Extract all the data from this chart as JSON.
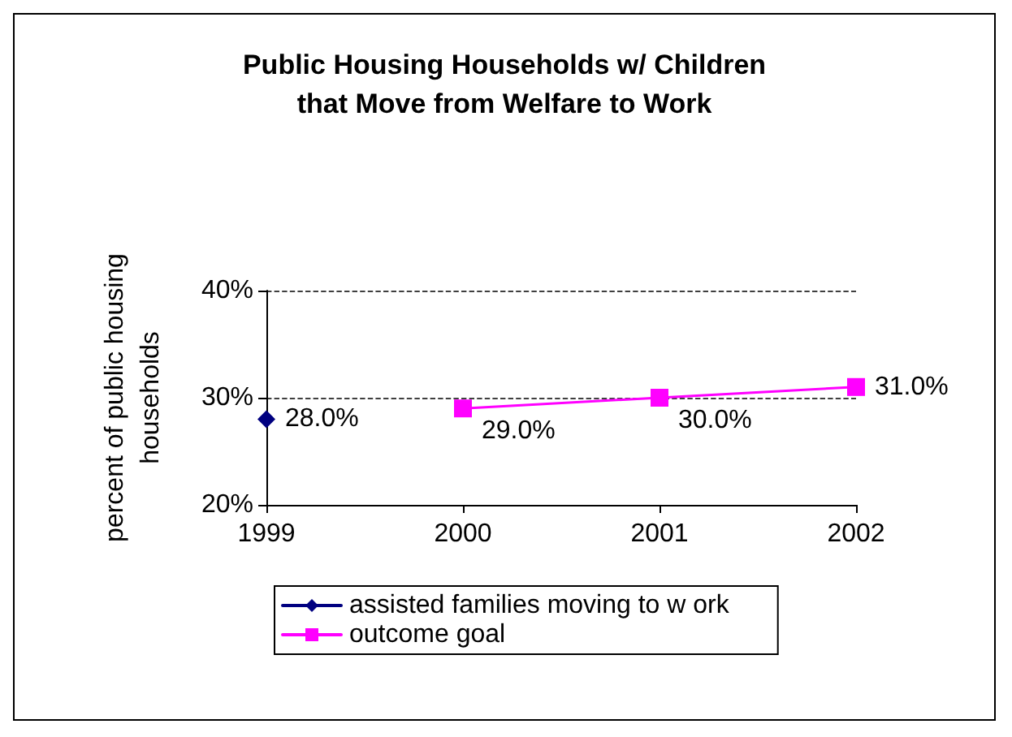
{
  "chart_data": {
    "type": "line",
    "title": "Public Housing Households w/ Children\nthat Move from Welfare to Work",
    "ylabel": "percent of public housing\nhouseholds",
    "categories": [
      "1999",
      "2000",
      "2001",
      "2002"
    ],
    "series": [
      {
        "name": "assisted families moving to w ork",
        "color": "#000080",
        "marker": "diamond",
        "values": [
          28,
          null,
          null,
          null
        ],
        "value_labels": [
          "28.0%",
          null,
          null,
          null
        ]
      },
      {
        "name": "outcome goal",
        "color": "#ff00ff",
        "marker": "square",
        "values": [
          null,
          29,
          30,
          31
        ],
        "value_labels": [
          null,
          "29.0%",
          "30.0%",
          "31.0%"
        ]
      }
    ],
    "ylim": [
      20,
      40
    ],
    "yticks": [
      {
        "value": 20,
        "label": "20%"
      },
      {
        "value": 30,
        "label": "30%"
      },
      {
        "value": 40,
        "label": "40%"
      }
    ],
    "grid": "y",
    "legend": "bottom",
    "line_style": "solid"
  }
}
